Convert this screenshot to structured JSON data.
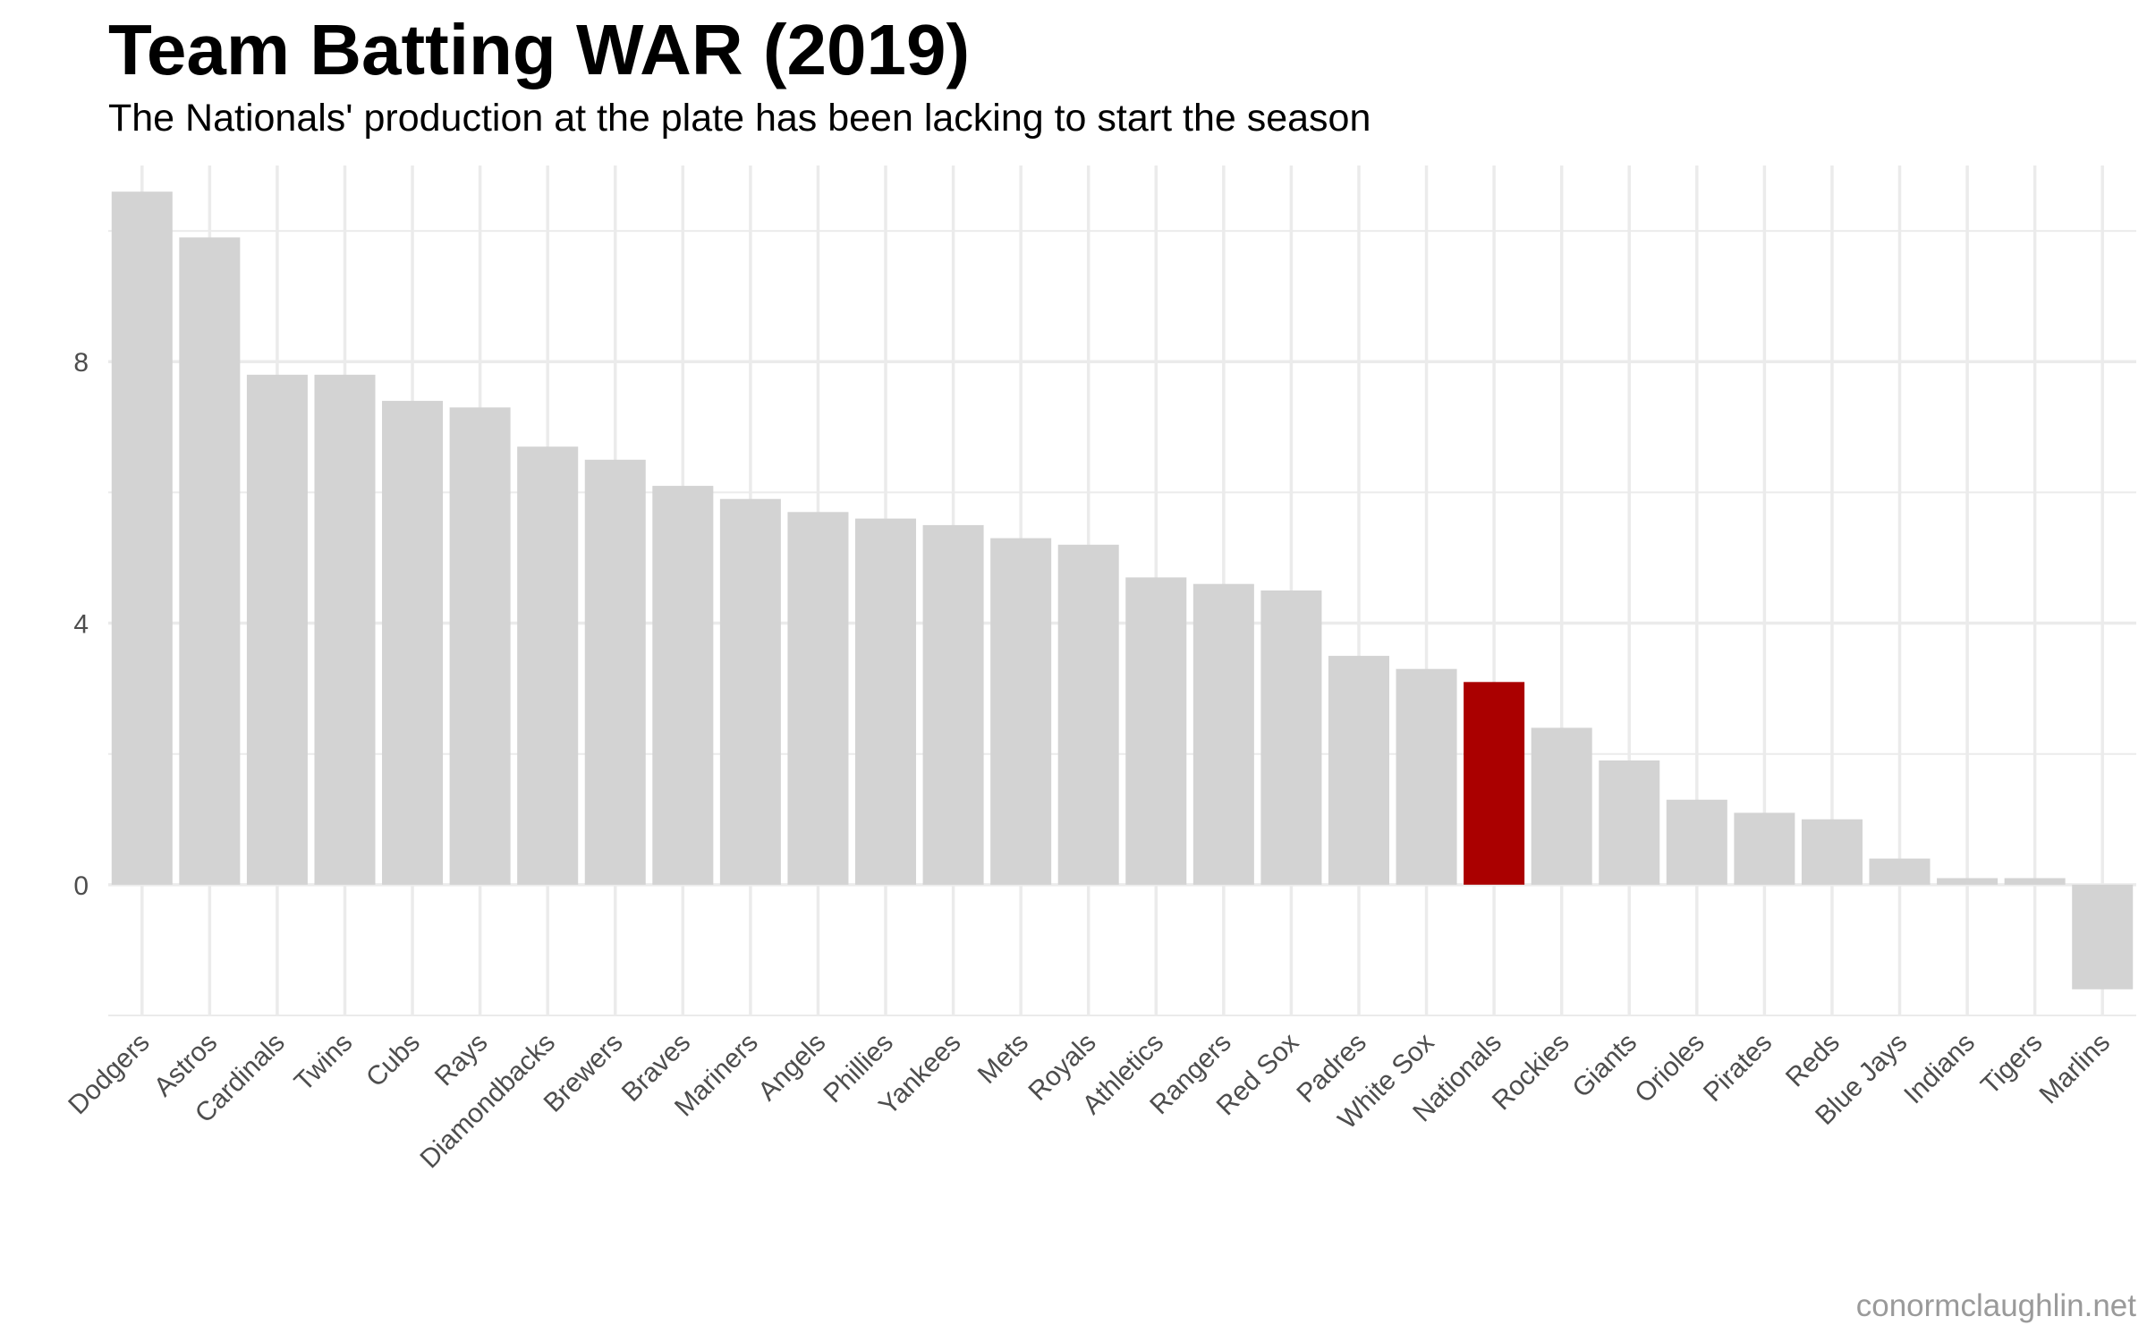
{
  "title": "Team Batting WAR (2019)",
  "subtitle": "The Nationals' production at the plate has been lacking to start the season",
  "caption": "conormclaughlin.net",
  "colors": {
    "bar": "#d3d3d3",
    "highlight": "#aa0000",
    "grid": "#ebebeb",
    "text": "#4d4d4d",
    "caption": "#9a9a9a"
  },
  "chart_data": {
    "type": "bar",
    "title": "Team Batting WAR (2019)",
    "subtitle": "The Nationals' production at the plate has been lacking to start the season",
    "xlabel": "",
    "ylabel": "",
    "ylim": [
      -2,
      11
    ],
    "yticks": [
      0,
      4,
      8
    ],
    "grid": true,
    "highlight": "Nationals",
    "categories": [
      "Dodgers",
      "Astros",
      "Cardinals",
      "Twins",
      "Cubs",
      "Rays",
      "Diamondbacks",
      "Brewers",
      "Braves",
      "Mariners",
      "Angels",
      "Phillies",
      "Yankees",
      "Mets",
      "Royals",
      "Athletics",
      "Rangers",
      "Red Sox",
      "Padres",
      "White Sox",
      "Nationals",
      "Rockies",
      "Giants",
      "Orioles",
      "Pirates",
      "Reds",
      "Blue Jays",
      "Indians",
      "Tigers",
      "Marlins"
    ],
    "values": [
      10.6,
      9.9,
      7.8,
      7.8,
      7.4,
      7.3,
      6.7,
      6.5,
      6.1,
      5.9,
      5.7,
      5.6,
      5.5,
      5.3,
      5.2,
      4.7,
      4.6,
      4.5,
      3.5,
      3.3,
      3.1,
      2.4,
      1.9,
      1.3,
      1.1,
      1.0,
      0.4,
      0.1,
      0.1,
      -1.6
    ]
  }
}
